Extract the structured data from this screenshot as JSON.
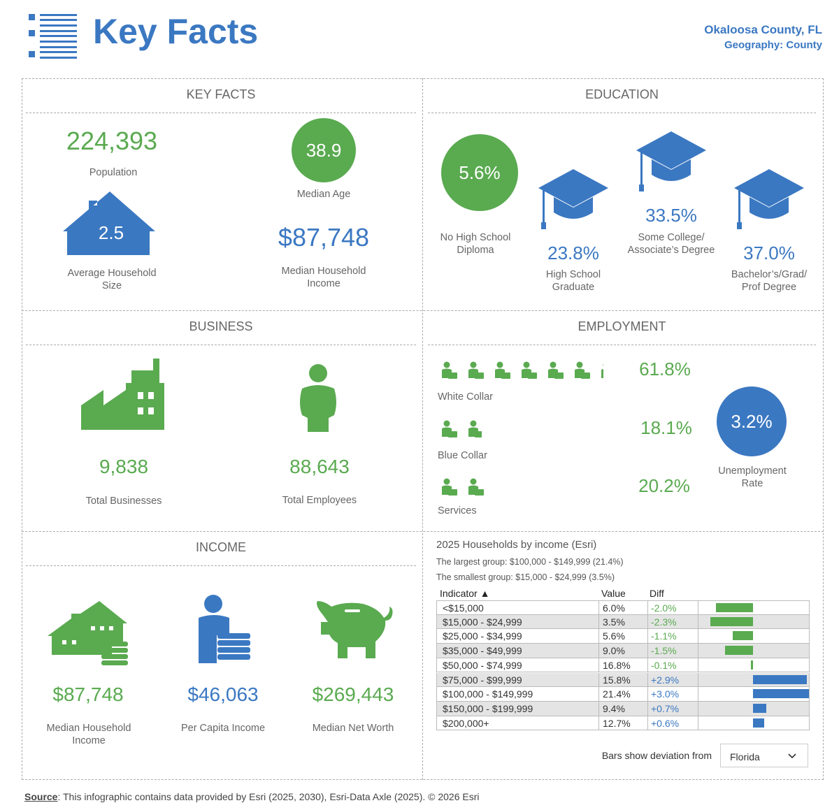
{
  "header": {
    "title": "Key Facts",
    "location": "Okaloosa County, FL",
    "geography": "Geography: County"
  },
  "key_facts": {
    "heading": "KEY FACTS",
    "population": {
      "value": "224,393",
      "label": "Population"
    },
    "median_age": {
      "value": "38.9",
      "label": "Median Age"
    },
    "household_size": {
      "value": "2.5",
      "label": "Average Household Size"
    },
    "median_household_income": {
      "value": "$87,748",
      "label": "Median Household Income"
    }
  },
  "education": {
    "heading": "EDUCATION",
    "no_diploma": {
      "value": "5.6%",
      "label": "No High School Diploma"
    },
    "high_school": {
      "value": "23.8%",
      "label": "High School Graduate"
    },
    "some_college": {
      "value": "33.5%",
      "label": "Some College/ Associate’s Degree"
    },
    "bachelors": {
      "value": "37.0%",
      "label": "Bachelor’s/Grad/ Prof Degree"
    }
  },
  "business": {
    "heading": "BUSINESS",
    "businesses": {
      "value": "9,838",
      "label": "Total Businesses"
    },
    "employees": {
      "value": "88,643",
      "label": "Total Employees"
    }
  },
  "employment": {
    "heading": "EMPLOYMENT",
    "items": [
      {
        "name": "White Collar",
        "value": {
          "value": 61.8,
          "label": "61.8%"
        }
      },
      {
        "name": "Blue Collar",
        "value": {
          "value": 18.1,
          "label": "18.1%"
        }
      },
      {
        "name": "Services",
        "value": {
          "value": 20.2,
          "label": "20.2%"
        }
      }
    ],
    "unemployment": {
      "value": "3.2%",
      "label": "Unemployment Rate"
    }
  },
  "income": {
    "heading": "INCOME",
    "median_household_income": {
      "value": "$87,748",
      "label": "Median Household Income"
    },
    "per_capita_income": {
      "value": "$46,063",
      "label": "Per Capita Income"
    },
    "median_net_worth": {
      "value": "$269,443",
      "label": "Median Net Worth"
    }
  },
  "households": {
    "title": "2025 Households by income (Esri)",
    "largest": "The largest group: $100,000 - $149,999 (21.4%)",
    "smallest": "The smallest group: $15,000 - $24,999 (3.5%)",
    "columns": [
      "Indicator ▲",
      "Value",
      "Diff"
    ],
    "rows": [
      {
        "indicator": "<$15,000",
        "value": "6.0%",
        "diff": {
          "value": -2.0,
          "label": "-2.0%"
        }
      },
      {
        "indicator": "$15,000 - $24,999",
        "value": "3.5%",
        "diff": {
          "value": -2.3,
          "label": "-2.3%"
        }
      },
      {
        "indicator": "$25,000 - $34,999",
        "value": "5.6%",
        "diff": {
          "value": -1.1,
          "label": "-1.1%"
        }
      },
      {
        "indicator": "$35,000 - $49,999",
        "value": "9.0%",
        "diff": {
          "value": -1.5,
          "label": "-1.5%"
        }
      },
      {
        "indicator": "$50,000 - $74,999",
        "value": "16.8%",
        "diff": {
          "value": -0.1,
          "label": "-0.1%"
        }
      },
      {
        "indicator": "$75,000 - $99,999",
        "value": "15.8%",
        "diff": {
          "value": 2.9,
          "label": "+2.9%"
        }
      },
      {
        "indicator": "$100,000 - $149,999",
        "value": "21.4%",
        "diff": {
          "value": 3.0,
          "label": "+3.0%"
        }
      },
      {
        "indicator": "$150,000 - $199,999",
        "value": "9.4%",
        "diff": {
          "value": 0.7,
          "label": "+0.7%"
        }
      },
      {
        "indicator": "$200,000+",
        "value": "12.7%",
        "diff": {
          "value": 0.6,
          "label": "+0.6%"
        }
      }
    ],
    "deviation_label": "Bars show deviation from",
    "deviation_choice": "Florida"
  },
  "source": {
    "label": "Source",
    "text": ": This infographic contains data provided by Esri (2025, 2030), Esri-Data Axle (2025). © 2026 Esri"
  }
}
